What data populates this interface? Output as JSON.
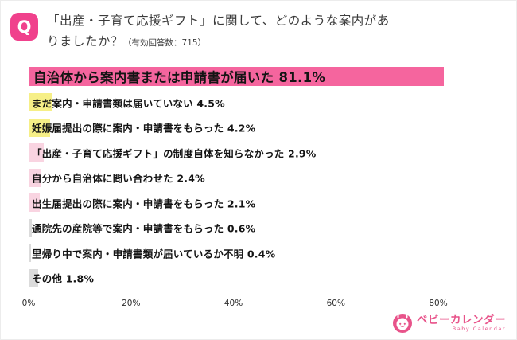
{
  "header": {
    "q_label": "Q",
    "title": "「出産・子育て応援ギフト」に関して、どのような案内がありましたか？",
    "note": "（有効回答数：715）"
  },
  "chart_data": {
    "type": "bar",
    "orientation": "horizontal",
    "title": "「出産・子育て応援ギフト」に関して、どのような案内がありましたか？",
    "valid_responses_label": "有効回答数：715",
    "categories": [
      "自治体から案内書または申請書が届いた",
      "まだ案内・申請書類は届いていない",
      "妊娠届提出の際に案内・申請書をもらった",
      "「出産・子育て応援ギフト」の制度自体を知らなかった",
      "自分から自治体に問い合わせた",
      "出生届提出の際に案内・申請書をもらった",
      "通院先の産院等で案内・申請書をもらった",
      "里帰り中で案内・申請書類が届いているか不明",
      "その他"
    ],
    "values": [
      81.1,
      4.5,
      4.2,
      2.9,
      2.4,
      2.1,
      0.6,
      0.4,
      1.8
    ],
    "unit": "%",
    "bar_colors": [
      "#f5659e",
      "#f6ef87",
      "#f6ef87",
      "#f9d4e1",
      "#f9d4e1",
      "#f9d4e1",
      "#dbdbdb",
      "#dbdbdb",
      "#dbdbdb"
    ],
    "x_ticks": [
      0,
      20,
      40,
      60,
      80
    ],
    "xlim": [
      0,
      95
    ],
    "grid": false,
    "legend": false
  },
  "footer": {
    "logo_text": "ベビーカレンダー",
    "logo_subtext": "Baby Calendar"
  }
}
